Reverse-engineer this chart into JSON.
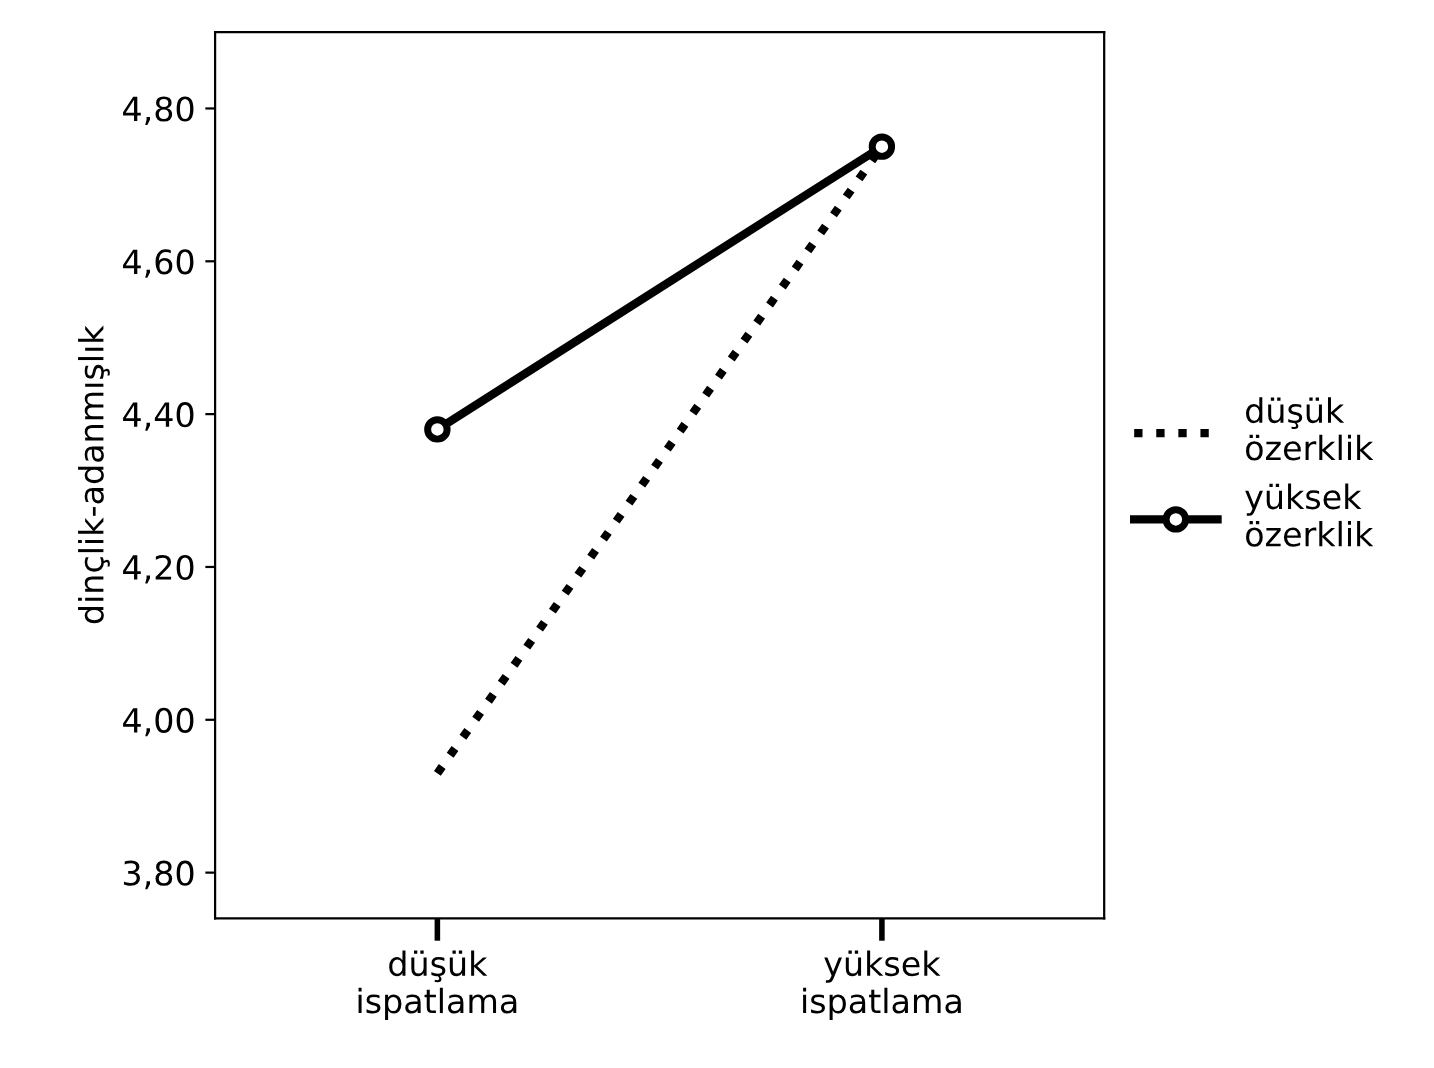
{
  "chart_data": {
    "type": "line",
    "ylabel": "dinçlik-adanmışlık",
    "categories": [
      "düşük\nispatlama",
      "yüksek\nispatlama"
    ],
    "series": [
      {
        "name": "düşük\nözerklik",
        "color": "#000000",
        "values": [
          3.93,
          4.75
        ],
        "line_style": "dotted"
      },
      {
        "name": "yüksek\nözerklik",
        "color": "#000000",
        "values": [
          4.38,
          4.75
        ],
        "line_style": "solid",
        "marker": "circle"
      }
    ],
    "ylim": [
      3.74,
      4.9
    ],
    "yticks": [
      {
        "value": 3.8,
        "label": "3,80"
      },
      {
        "value": 4.0,
        "label": "4,00"
      },
      {
        "value": 4.2,
        "label": "4,20"
      },
      {
        "value": 4.4,
        "label": "4,40"
      },
      {
        "value": 4.6,
        "label": "4,60"
      },
      {
        "value": 4.8,
        "label": "4,80"
      }
    ],
    "grid": false,
    "legend": "right"
  }
}
